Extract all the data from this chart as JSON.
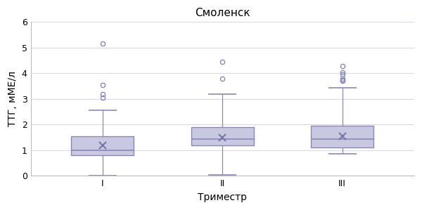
{
  "title": "Смоленск",
  "xlabel": "Триместр",
  "ylabel": "ТТГ, мМЕ/л",
  "categories": [
    "I",
    "II",
    "III"
  ],
  "box_edge_color": "#8888bb",
  "box_face_color": "#c8c8e0",
  "median_color": "#8888bb",
  "mean_color": "#7777aa",
  "whisker_color": "#8888bb",
  "flier_facecolor": "none",
  "flier_edgecolor": "#8888bb",
  "ylim": [
    0,
    6
  ],
  "yticks": [
    0,
    1,
    2,
    3,
    4,
    5,
    6
  ],
  "box_data": [
    {
      "q1": 0.8,
      "median": 1.0,
      "q3": 1.55,
      "whislo": 0.0,
      "whishi": 2.55,
      "mean": 1.2,
      "fliers": [
        3.05,
        3.2,
        3.55,
        5.15
      ]
    },
    {
      "q1": 1.2,
      "median": 1.45,
      "q3": 1.9,
      "whislo": 0.05,
      "whishi": 3.2,
      "mean": 1.5,
      "fliers": [
        3.8,
        4.45
      ]
    },
    {
      "q1": 1.1,
      "median": 1.45,
      "q3": 1.95,
      "whislo": 0.85,
      "whishi": 3.45,
      "mean": 1.55,
      "fliers": [
        3.7,
        3.75,
        3.8,
        3.95,
        4.05,
        4.3
      ]
    }
  ],
  "plot_bg_color": "#ffffff",
  "fig_bg_color": "#ffffff",
  "grid_color": "#d8d8e8",
  "title_fontsize": 11,
  "label_fontsize": 10,
  "tick_fontsize": 9,
  "box_width": 0.52,
  "cap_ratio": 0.45
}
